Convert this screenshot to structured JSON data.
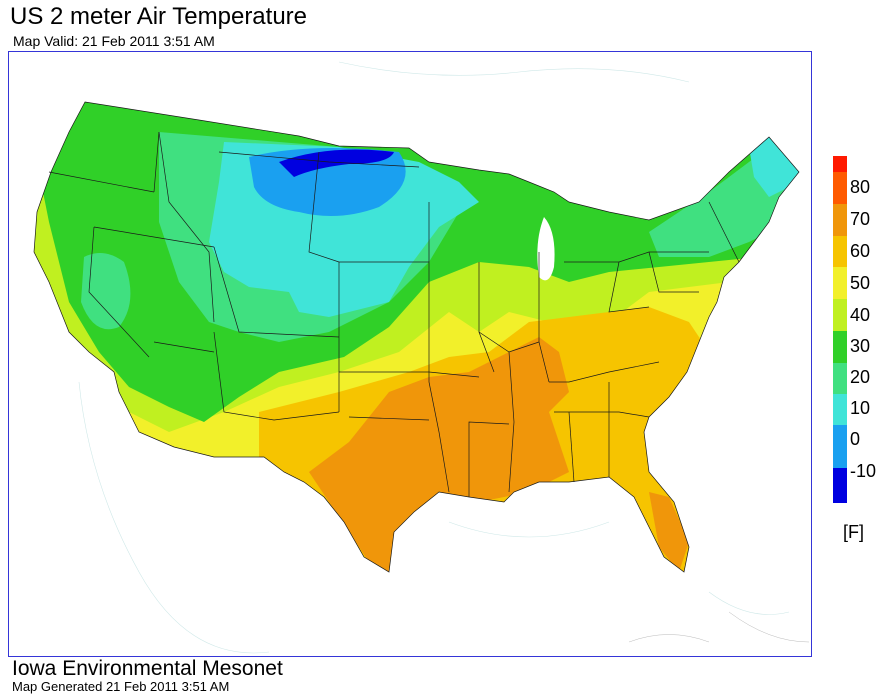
{
  "map": {
    "title": "US 2 meter Air Temperature",
    "valid_time": "Map Valid: 21 Feb 2011 3:51 AM",
    "units": "[F]"
  },
  "legend": {
    "ticks": [
      "80",
      "70",
      "60",
      "50",
      "40",
      "30",
      "20",
      "10",
      "0",
      "-10"
    ],
    "colors": {
      "above_80": "#ff1a00",
      "70_80": "#ff5a00",
      "60_70": "#f0960a",
      "50_60": "#f6c400",
      "40_50": "#f2f02a",
      "30_40": "#c0f020",
      "20_30": "#30d028",
      "10_20": "#40e080",
      "0_10": "#40e4d8",
      "-10_0": "#1aa0f0",
      "below_-10": "#0000e0"
    }
  },
  "footer": {
    "org": "Iowa Environmental Mesonet",
    "generated": "Map Generated 21 Feb 2011 3:51 AM"
  }
}
